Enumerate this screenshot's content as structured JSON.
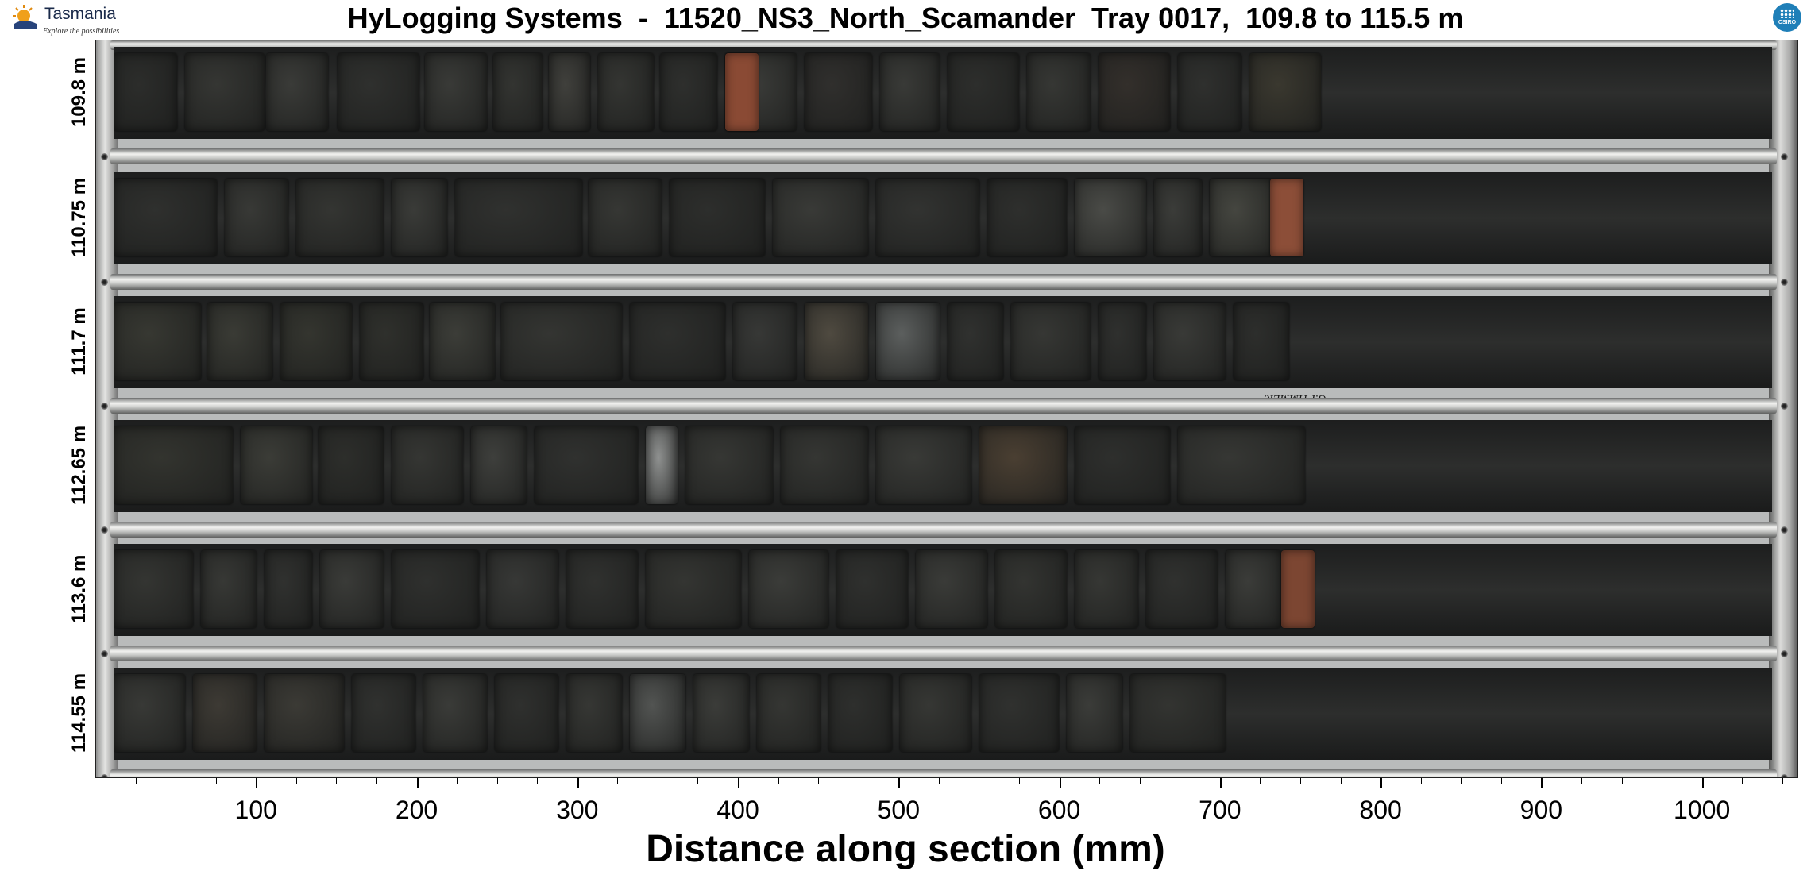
{
  "header": {
    "title": "HyLogging Systems  -  11520_NS3_North_Scamander  Tray 0017,  109.8 to 115.5 m",
    "left_logo_word": "Tasmania",
    "left_logo_tagline": "Explore the possibilities",
    "right_logo_label": "CSIRO"
  },
  "tray": {
    "rows": [
      {
        "depth_label": "109.8 m",
        "pieces": [
          [
            0,
            80,
            "#2c2d2b"
          ],
          [
            90,
            190,
            "#353633"
          ],
          [
            192,
            270,
            "#3a3b38"
          ],
          [
            282,
            385,
            "#2f302e"
          ],
          [
            392,
            470,
            "#393a37"
          ],
          [
            478,
            540,
            "#333431"
          ],
          [
            548,
            600,
            "#40403c"
          ],
          [
            610,
            680,
            "#343532"
          ],
          [
            688,
            760,
            "#2e2f2d"
          ],
          [
            770,
            860,
            "#3b3c39"
          ],
          [
            870,
            955,
            "#302f2d"
          ],
          [
            965,
            1040,
            "#393a37"
          ],
          [
            1050,
            1140,
            "#2d2e2c"
          ],
          [
            1150,
            1230,
            "#363734"
          ],
          [
            1240,
            1330,
            "#332f2b"
          ],
          [
            1340,
            1420,
            "#2f302e"
          ],
          [
            1430,
            1520,
            "#3a382f"
          ]
        ],
        "tag": [
          770,
          "#8a4a34"
        ]
      },
      {
        "depth_label": "110.75 m",
        "pieces": [
          [
            0,
            130,
            "#2f302e"
          ],
          [
            140,
            220,
            "#383936"
          ],
          [
            230,
            340,
            "#343532"
          ],
          [
            350,
            420,
            "#3a3b38"
          ],
          [
            430,
            590,
            "#30312f"
          ],
          [
            598,
            690,
            "#363734"
          ],
          [
            700,
            820,
            "#2d2e2c"
          ],
          [
            830,
            950,
            "#393a37"
          ],
          [
            960,
            1090,
            "#323331"
          ],
          [
            1100,
            1200,
            "#2e2f2d"
          ],
          [
            1210,
            1300,
            "#4a4b47"
          ],
          [
            1310,
            1370,
            "#3b3c39"
          ],
          [
            1380,
            1460,
            "#454640"
          ]
        ],
        "tag": [
          1456,
          "#8c4e38"
        ]
      },
      {
        "depth_label": "111.7 m",
        "pieces": [
          [
            0,
            110,
            "#373832"
          ],
          [
            118,
            200,
            "#3a3b35"
          ],
          [
            210,
            300,
            "#34352f"
          ],
          [
            310,
            390,
            "#2f302c"
          ],
          [
            398,
            480,
            "#3c3d38"
          ],
          [
            488,
            640,
            "#343532"
          ],
          [
            650,
            770,
            "#2e2f2d"
          ],
          [
            780,
            860,
            "#373836"
          ],
          [
            870,
            950,
            "#4f4a40"
          ],
          [
            960,
            1040,
            "#5c5f5e"
          ],
          [
            1050,
            1120,
            "#30312f"
          ],
          [
            1130,
            1230,
            "#363734"
          ],
          [
            1240,
            1300,
            "#2f302e"
          ],
          [
            1310,
            1400,
            "#393a37"
          ],
          [
            1410,
            1480,
            "#2d2e2c"
          ]
        ],
        "tag": null
      },
      {
        "depth_label": "112.65 m",
        "pieces": [
          [
            0,
            150,
            "#33342f"
          ],
          [
            160,
            250,
            "#3b3c37"
          ],
          [
            258,
            340,
            "#2d2e2b"
          ],
          [
            350,
            440,
            "#353633"
          ],
          [
            450,
            520,
            "#3e3f3c"
          ],
          [
            530,
            660,
            "#30312f"
          ],
          [
            670,
            710,
            "#8f9190"
          ],
          [
            720,
            830,
            "#363734"
          ],
          [
            840,
            950,
            "#353633"
          ],
          [
            960,
            1080,
            "#393a37"
          ],
          [
            1090,
            1200,
            "#4a3f32"
          ],
          [
            1210,
            1330,
            "#2e2f2d"
          ],
          [
            1340,
            1500,
            "#363734"
          ]
        ],
        "tag": null
      },
      {
        "depth_label": "113.6 m",
        "pieces": [
          [
            0,
            100,
            "#343532"
          ],
          [
            110,
            180,
            "#373835"
          ],
          [
            190,
            250,
            "#30312f"
          ],
          [
            260,
            340,
            "#3a3b38"
          ],
          [
            350,
            460,
            "#2f302e"
          ],
          [
            470,
            560,
            "#373836"
          ],
          [
            570,
            660,
            "#30312f"
          ],
          [
            670,
            790,
            "#343532"
          ],
          [
            800,
            900,
            "#3b3c39"
          ],
          [
            910,
            1000,
            "#2f302e"
          ],
          [
            1010,
            1100,
            "#3a3b38"
          ],
          [
            1110,
            1200,
            "#333431"
          ],
          [
            1210,
            1290,
            "#363734"
          ],
          [
            1300,
            1390,
            "#30312f"
          ],
          [
            1400,
            1470,
            "#3b3c39"
          ]
        ],
        "tag": [
          1470,
          "#7c4632"
        ]
      },
      {
        "depth_label": "114.55 m",
        "pieces": [
          [
            0,
            90,
            "#383936"
          ],
          [
            100,
            180,
            "#3d3a34"
          ],
          [
            190,
            290,
            "#3b3a35"
          ],
          [
            300,
            380,
            "#30312f"
          ],
          [
            390,
            470,
            "#3a3b38"
          ],
          [
            480,
            560,
            "#2f302e"
          ],
          [
            570,
            640,
            "#363734"
          ],
          [
            650,
            720,
            "#525452"
          ],
          [
            730,
            800,
            "#3b3c39"
          ],
          [
            810,
            890,
            "#353633"
          ],
          [
            900,
            980,
            "#2e2f2d"
          ],
          [
            990,
            1080,
            "#363734"
          ],
          [
            1090,
            1190,
            "#30312f"
          ],
          [
            1200,
            1270,
            "#3b3c39"
          ],
          [
            1280,
            1400,
            "#333431"
          ]
        ],
        "tag": null
      }
    ],
    "handwriting": [
      "G.PTIMMER.",
      "P25-120."
    ]
  },
  "axis": {
    "xlabel": "Distance along section (mm)",
    "xlim": [
      0,
      1060
    ],
    "major_ticks": [
      100,
      200,
      300,
      400,
      500,
      600,
      700,
      800,
      900,
      1000
    ],
    "minor_step": 25
  }
}
